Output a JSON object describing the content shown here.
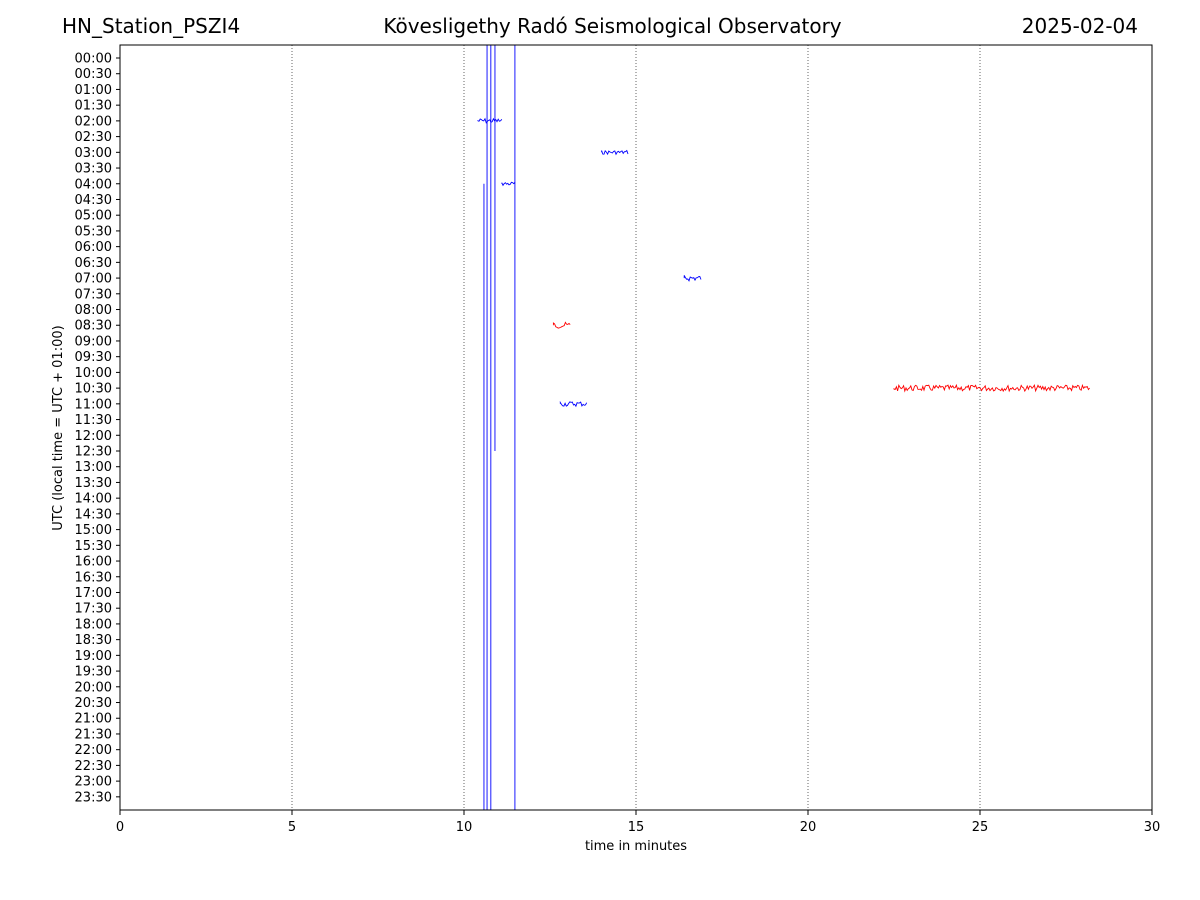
{
  "header": {
    "station": "HN_Station_PSZI4",
    "observatory": "Kövesligethy Radó Seismological Observatory",
    "date": "2025-02-04"
  },
  "chart_data": {
    "type": "line",
    "title": "Kövesligethy Radó Seismological Observatory",
    "xlabel": "time in minutes",
    "ylabel": "UTC (local time = UTC + 01:00)",
    "xlim": [
      0,
      30
    ],
    "xticks": [
      0,
      5,
      10,
      15,
      20,
      25,
      30
    ],
    "grid": "vertical dotted at x ticks",
    "row_labels": [
      "00:00",
      "00:30",
      "01:00",
      "01:30",
      "02:00",
      "02:30",
      "03:00",
      "03:30",
      "04:00",
      "04:30",
      "05:00",
      "05:30",
      "06:00",
      "06:30",
      "07:00",
      "07:30",
      "08:00",
      "08:30",
      "09:00",
      "09:30",
      "10:00",
      "10:30",
      "11:00",
      "11:30",
      "12:00",
      "12:30",
      "13:00",
      "13:30",
      "14:00",
      "14:30",
      "15:00",
      "15:30",
      "16:00",
      "16:30",
      "17:00",
      "17:30",
      "18:00",
      "18:30",
      "19:00",
      "19:30",
      "20:00",
      "20:30",
      "21:00",
      "21:30",
      "22:00",
      "22:30",
      "23:00",
      "23:30"
    ],
    "trace_colors": [
      "#0000ff",
      "#ff0000"
    ],
    "events": [
      {
        "row": "02:00",
        "x_start": 10.4,
        "x_end": 11.1,
        "color": "#0000ff",
        "amp": 2.5
      },
      {
        "row": "03:00",
        "x_start": 14.0,
        "x_end": 14.8,
        "color": "#0000ff",
        "amp": 2
      },
      {
        "row": "04:00",
        "x_start": 11.1,
        "x_end": 11.5,
        "color": "#0000ff",
        "amp": 2
      },
      {
        "row": "07:00",
        "x_start": 16.4,
        "x_end": 16.9,
        "color": "#0000ff",
        "amp": 3
      },
      {
        "row": "08:30",
        "x_start": 12.6,
        "x_end": 13.1,
        "color": "#ff0000",
        "amp": 3
      },
      {
        "row": "10:30",
        "x_start": 22.5,
        "x_end": 28.2,
        "color": "#ff0000",
        "amp": 3
      },
      {
        "row": "11:00",
        "x_start": 12.8,
        "x_end": 13.6,
        "color": "#0000ff",
        "amp": 2.5
      }
    ],
    "spikes": [
      {
        "x": 10.58,
        "from_row": "04:00",
        "to_row": "23:30",
        "color": "#0000ff"
      },
      {
        "x": 10.67,
        "from_row": "00:00",
        "to_row": "23:30",
        "color": "#0000ff"
      },
      {
        "x": 10.78,
        "from_row": "00:00",
        "to_row": "23:30",
        "color": "#0000ff"
      },
      {
        "x": 10.9,
        "from_row": "00:00",
        "to_row": "12:30",
        "color": "#0000ff"
      },
      {
        "x": 11.48,
        "from_row": "00:00",
        "to_row": "23:30",
        "color": "#0000ff"
      }
    ]
  }
}
